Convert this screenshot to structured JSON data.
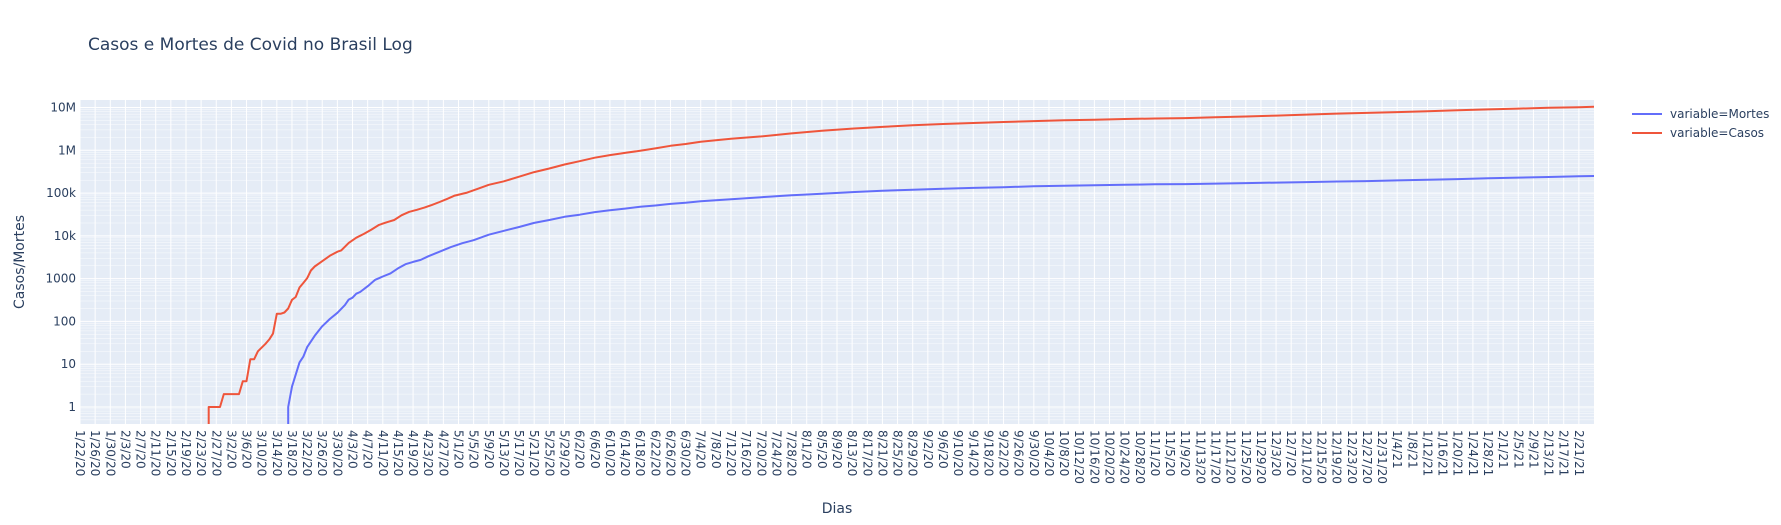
{
  "chart_data": {
    "type": "line",
    "title": "Casos e Mortes de Covid no Brasil Log",
    "xlabel": "Dias",
    "ylabel": "Casos/Mortes",
    "yscale": "log",
    "ylim": [
      0.4,
      15000000
    ],
    "xlim": [
      "1/22/20",
      "2/25/21"
    ],
    "grid": true,
    "legend_position": "top-right",
    "background": "#E5ECF6",
    "y_ticks": [
      {
        "value": 1,
        "label": "1"
      },
      {
        "value": 10,
        "label": "10"
      },
      {
        "value": 100,
        "label": "100"
      },
      {
        "value": 1000,
        "label": "1000"
      },
      {
        "value": 10000,
        "label": "10k"
      },
      {
        "value": 100000,
        "label": "100k"
      },
      {
        "value": 1000000,
        "label": "1M"
      },
      {
        "value": 10000000,
        "label": "10M"
      }
    ],
    "x_tick_labels": [
      "1/22/20",
      "1/26/20",
      "1/30/20",
      "2/3/20",
      "2/7/20",
      "2/11/20",
      "2/15/20",
      "2/19/20",
      "2/23/20",
      "2/27/20",
      "3/2/20",
      "3/6/20",
      "3/10/20",
      "3/14/20",
      "3/18/20",
      "3/22/20",
      "3/26/20",
      "3/30/20",
      "4/3/20",
      "4/7/20",
      "4/11/20",
      "4/15/20",
      "4/19/20",
      "4/23/20",
      "4/27/20",
      "5/1/20",
      "5/5/20",
      "5/9/20",
      "5/13/20",
      "5/17/20",
      "5/21/20",
      "5/25/20",
      "5/29/20",
      "6/2/20",
      "6/6/20",
      "6/10/20",
      "6/14/20",
      "6/18/20",
      "6/22/20",
      "6/26/20",
      "6/30/20",
      "7/4/20",
      "7/8/20",
      "7/12/20",
      "7/16/20",
      "7/20/20",
      "7/24/20",
      "7/28/20",
      "8/1/20",
      "8/5/20",
      "8/9/20",
      "8/13/20",
      "8/17/20",
      "8/21/20",
      "8/25/20",
      "8/29/20",
      "9/2/20",
      "9/6/20",
      "9/10/20",
      "9/14/20",
      "9/18/20",
      "9/22/20",
      "9/26/20",
      "9/30/20",
      "10/4/20",
      "10/8/20",
      "10/12/20",
      "10/16/20",
      "10/20/20",
      "10/24/20",
      "10/28/20",
      "11/1/20",
      "11/5/20",
      "11/9/20",
      "11/13/20",
      "11/17/20",
      "11/21/20",
      "11/25/20",
      "11/29/20",
      "12/3/20",
      "12/7/20",
      "12/11/20",
      "12/15/20",
      "12/19/20",
      "12/23/20",
      "12/27/20",
      "12/31/20",
      "1/4/21",
      "1/8/21",
      "1/12/21",
      "1/16/21",
      "1/20/21",
      "1/24/21",
      "1/28/21",
      "2/1/21",
      "2/5/21",
      "2/9/21",
      "2/13/21",
      "2/17/21",
      "2/21/21"
    ],
    "series": [
      {
        "name": "variable=Mortes",
        "color": "#636EFA",
        "points": [
          [
            "3/17/20",
            0.4
          ],
          [
            "3/17/20",
            1
          ],
          [
            "3/18/20",
            3
          ],
          [
            "3/20/20",
            11
          ],
          [
            "3/21/20",
            15
          ],
          [
            "3/22/20",
            25
          ],
          [
            "3/24/20",
            46
          ],
          [
            "3/26/20",
            77
          ],
          [
            "3/28/20",
            114
          ],
          [
            "3/30/20",
            159
          ],
          [
            "4/1/20",
            241
          ],
          [
            "4/2/20",
            324
          ],
          [
            "4/3/20",
            359
          ],
          [
            "4/4/20",
            445
          ],
          [
            "4/5/20",
            486
          ],
          [
            "4/7/20",
            667
          ],
          [
            "4/9/20",
            941
          ],
          [
            "4/11/20",
            1124
          ],
          [
            "4/13/20",
            1328
          ],
          [
            "4/15/20",
            1736
          ],
          [
            "4/17/20",
            2171
          ],
          [
            "4/19/20",
            2462
          ],
          [
            "4/21/20",
            2741
          ],
          [
            "4/23/20",
            3331
          ],
          [
            "4/26/20",
            4271
          ],
          [
            "4/29/20",
            5466
          ],
          [
            "5/2/20",
            6750
          ],
          [
            "5/5/20",
            7921
          ],
          [
            "5/9/20",
            10627
          ],
          [
            "5/13/20",
            13149
          ],
          [
            "5/17/20",
            16118
          ],
          [
            "5/21/20",
            20047
          ],
          [
            "5/25/20",
            23473
          ],
          [
            "5/29/20",
            27878
          ],
          [
            "6/2/20",
            31199
          ],
          [
            "6/6/20",
            35930
          ],
          [
            "6/10/20",
            39680
          ],
          [
            "6/14/20",
            43332
          ],
          [
            "6/18/20",
            47748
          ],
          [
            "6/22/20",
            51271
          ],
          [
            "6/26/20",
            55961
          ],
          [
            "6/30/20",
            59594
          ],
          [
            "7/4/20",
            64265
          ],
          [
            "7/12/20",
            72100
          ],
          [
            "7/20/20",
            80120
          ],
          [
            "7/28/20",
            88539
          ],
          [
            "8/5/20",
            96096
          ],
          [
            "8/13/20",
            105463
          ],
          [
            "8/21/20",
            113358
          ],
          [
            "8/29/20",
            120262
          ],
          [
            "9/6/20",
            126650
          ],
          [
            "9/14/20",
            132006
          ],
          [
            "9/22/20",
            137272
          ],
          [
            "9/30/20",
            143952
          ],
          [
            "10/8/20",
            148957
          ],
          [
            "10/16/20",
            153214
          ],
          [
            "10/24/20",
            156903
          ],
          [
            "11/1/20",
            160074
          ],
          [
            "11/9/20",
            162628
          ],
          [
            "11/17/20",
            166699
          ],
          [
            "11/25/20",
            171460
          ],
          [
            "12/3/20",
            175964
          ],
          [
            "12/11/20",
            180437
          ],
          [
            "12/19/20",
            186356
          ],
          [
            "12/27/20",
            191146
          ],
          [
            "1/4/21",
            197732
          ],
          [
            "1/12/21",
            205964
          ],
          [
            "1/20/21",
            212831
          ],
          [
            "1/28/21",
            221547
          ],
          [
            "2/5/21",
            230034
          ],
          [
            "2/13/21",
            237489
          ],
          [
            "2/21/21",
            246504
          ],
          [
            "2/25/21",
            251498
          ]
        ]
      },
      {
        "name": "variable=Casos",
        "color": "#EF553B",
        "points": [
          [
            "2/25/20",
            0.4
          ],
          [
            "2/25/20",
            1
          ],
          [
            "2/28/20",
            1
          ],
          [
            "2/29/20",
            2
          ],
          [
            "3/4/20",
            2
          ],
          [
            "3/5/20",
            4
          ],
          [
            "3/6/20",
            4
          ],
          [
            "3/7/20",
            13
          ],
          [
            "3/8/20",
            13
          ],
          [
            "3/9/20",
            20
          ],
          [
            "3/11/20",
            30
          ],
          [
            "3/12/20",
            38
          ],
          [
            "3/13/20",
            52
          ],
          [
            "3/14/20",
            151
          ],
          [
            "3/15/20",
            151
          ],
          [
            "3/16/20",
            162
          ],
          [
            "3/17/20",
            200
          ],
          [
            "3/18/20",
            321
          ],
          [
            "3/19/20",
            372
          ],
          [
            "3/20/20",
            621
          ],
          [
            "3/21/20",
            793
          ],
          [
            "3/22/20",
            1021
          ],
          [
            "3/23/20",
            1546
          ],
          [
            "3/24/20",
            1924
          ],
          [
            "3/26/20",
            2554
          ],
          [
            "3/28/20",
            3417
          ],
          [
            "3/30/20",
            4256
          ],
          [
            "3/31/20",
            4579
          ],
          [
            "4/2/20",
            6836
          ],
          [
            "4/4/20",
            9056
          ],
          [
            "4/6/20",
            11130
          ],
          [
            "4/8/20",
            14034
          ],
          [
            "4/10/20",
            18092
          ],
          [
            "4/12/20",
            20727
          ],
          [
            "4/14/20",
            23430
          ],
          [
            "4/16/20",
            30425
          ],
          [
            "4/18/20",
            36599
          ],
          [
            "4/20/20",
            40581
          ],
          [
            "4/22/20",
            45757
          ],
          [
            "4/24/20",
            52995
          ],
          [
            "4/26/20",
            61888
          ],
          [
            "4/28/20",
            73235
          ],
          [
            "4/30/20",
            87187
          ],
          [
            "5/3/20",
            101147
          ],
          [
            "5/6/20",
            125218
          ],
          [
            "5/9/20",
            155939
          ],
          [
            "5/13/20",
            188974
          ],
          [
            "5/17/20",
            241080
          ],
          [
            "5/21/20",
            310087
          ],
          [
            "5/25/20",
            374898
          ],
          [
            "5/29/20",
            465166
          ],
          [
            "6/2/20",
            555383
          ],
          [
            "6/6/20",
            672846
          ],
          [
            "6/10/20",
            772416
          ],
          [
            "6/14/20",
            867624
          ],
          [
            "6/18/20",
            978142
          ],
          [
            "6/22/20",
            1106470
          ],
          [
            "6/26/20",
            1274974
          ],
          [
            "6/30/20",
            1402041
          ],
          [
            "7/4/20",
            1577004
          ],
          [
            "7/12/20",
            1864681
          ],
          [
            "7/20/20",
            2118646
          ],
          [
            "7/28/20",
            2483191
          ],
          [
            "8/5/20",
            2859073
          ],
          [
            "8/13/20",
            3224876
          ],
          [
            "8/21/20",
            3532330
          ],
          [
            "8/29/20",
            3846153
          ],
          [
            "9/6/20",
            4123000
          ],
          [
            "9/14/20",
            4345610
          ],
          [
            "9/22/20",
            4591364
          ],
          [
            "9/30/20",
            4810935
          ],
          [
            "10/8/20",
            5028444
          ],
          [
            "10/16/20",
            5200300
          ],
          [
            "10/24/20",
            5380635
          ],
          [
            "11/1/20",
            5545705
          ],
          [
            "11/9/20",
            5675032
          ],
          [
            "11/17/20",
            5911758
          ],
          [
            "11/25/20",
            6166606
          ],
          [
            "12/3/20",
            6487084
          ],
          [
            "12/11/20",
            6836227
          ],
          [
            "12/19/20",
            7213155
          ],
          [
            "12/27/20",
            7484285
          ],
          [
            "1/4/21",
            7810400
          ],
          [
            "1/12/21",
            8195637
          ],
          [
            "1/20/21",
            8638249
          ],
          [
            "1/28/21",
            9060786
          ],
          [
            "2/5/21",
            9447165
          ],
          [
            "2/13/21",
            9834513
          ],
          [
            "2/21/21",
            10168141
          ],
          [
            "2/25/21",
            10390461
          ]
        ]
      }
    ]
  }
}
